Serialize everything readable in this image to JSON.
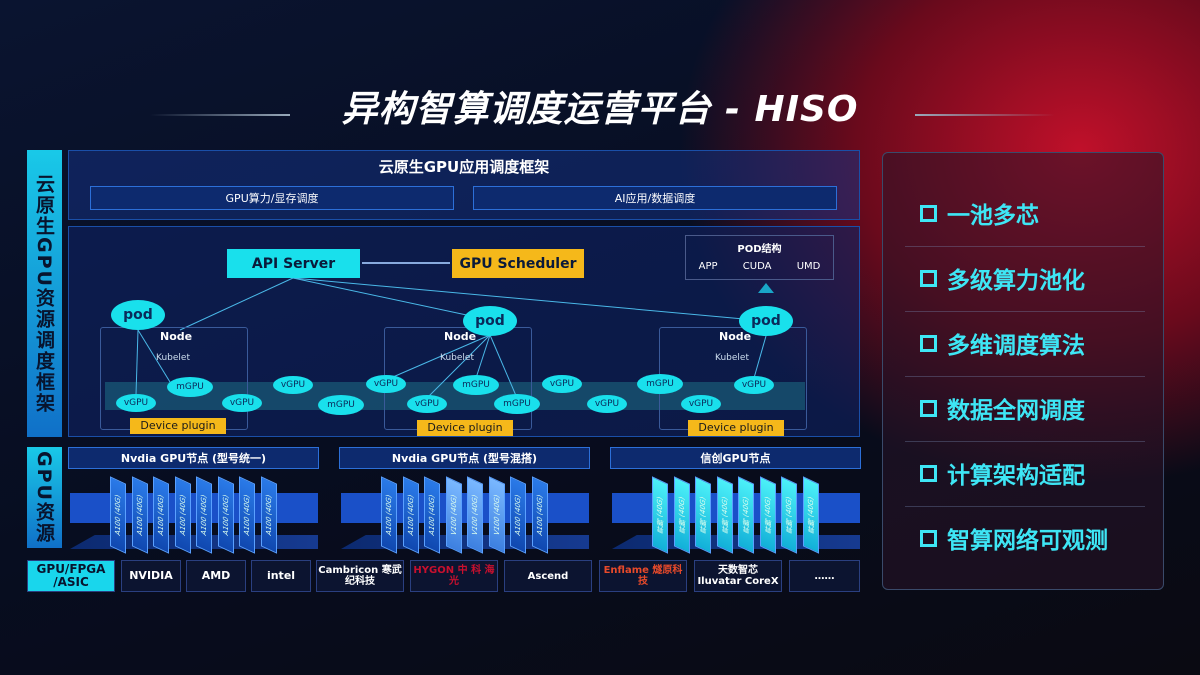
{
  "title": "异构智算调度运营平台 - HISO",
  "left_labels": {
    "framework": "云原生GPU资源调度框架",
    "resources": "GPU资源"
  },
  "framework": {
    "title": "云原生GPU应用调度框架",
    "sub1": "GPU算力/显存调度",
    "sub2": "AI应用/数据调度",
    "api_server": "API Server",
    "gpu_scheduler": "GPU Scheduler",
    "pod_struct": {
      "title": "POD结构",
      "items": [
        "APP",
        "CUDA",
        "UMD"
      ]
    },
    "node": "Node",
    "kubelet": "Kubelet",
    "pod": "pod",
    "device_plugin": "Device plugin",
    "units": [
      "vGPU",
      "mGPU",
      "vGPU",
      "vGPU",
      "mGPU",
      "vGPU",
      "vGPU",
      "mGPU",
      "mGPU",
      "vGPU",
      "vGPU",
      "mGPU",
      "vGPU",
      "vGPU"
    ]
  },
  "gpu_groups": [
    {
      "title": "Nvdia GPU节点 (型号统一)",
      "cards": [
        "A100 (40G)",
        "A100 (40G)",
        "A100 (40G)",
        "A100 (40G)",
        "A100 (40G)",
        "A100 (40G)",
        "A100 (40G)",
        "A100 (40G)"
      ]
    },
    {
      "title": "Nvdia GPU节点 (型号混搭)",
      "cards": [
        "A100 (40G)",
        "A100 (40G)",
        "A100 (40G)",
        "V100 (40G)",
        "V100 (40G)",
        "V100 (40G)",
        "A100 (40G)",
        "A100 (40G)"
      ]
    },
    {
      "title": "信创GPU节点",
      "cards": [
        "昇腾 (40G)",
        "昇腾 (40G)",
        "昇腾 (40G)",
        "昇腾 (40G)",
        "昇腾 (40G)",
        "昇腾 (40G)",
        "昇腾 (40G)",
        "昇腾 (40G)"
      ]
    }
  ],
  "vendors": {
    "label": "GPU/FPGA /ASIC",
    "items": [
      "NVIDIA",
      "AMD",
      "intel",
      "Cambricon 寒武纪科技",
      "HYGON 中 科 海 光",
      "Ascend",
      "Enflame 燧原科技",
      "天数智芯 Iluvatar CoreX",
      "……"
    ]
  },
  "features": [
    "一池多芯",
    "多级算力池化",
    "多维调度算法",
    "数据全网调度",
    "计算架构适配",
    "智算网络可观测"
  ],
  "colors": {
    "cyan": "#19e0ec",
    "accent": "#f5b81a",
    "red": "#c0102a"
  }
}
